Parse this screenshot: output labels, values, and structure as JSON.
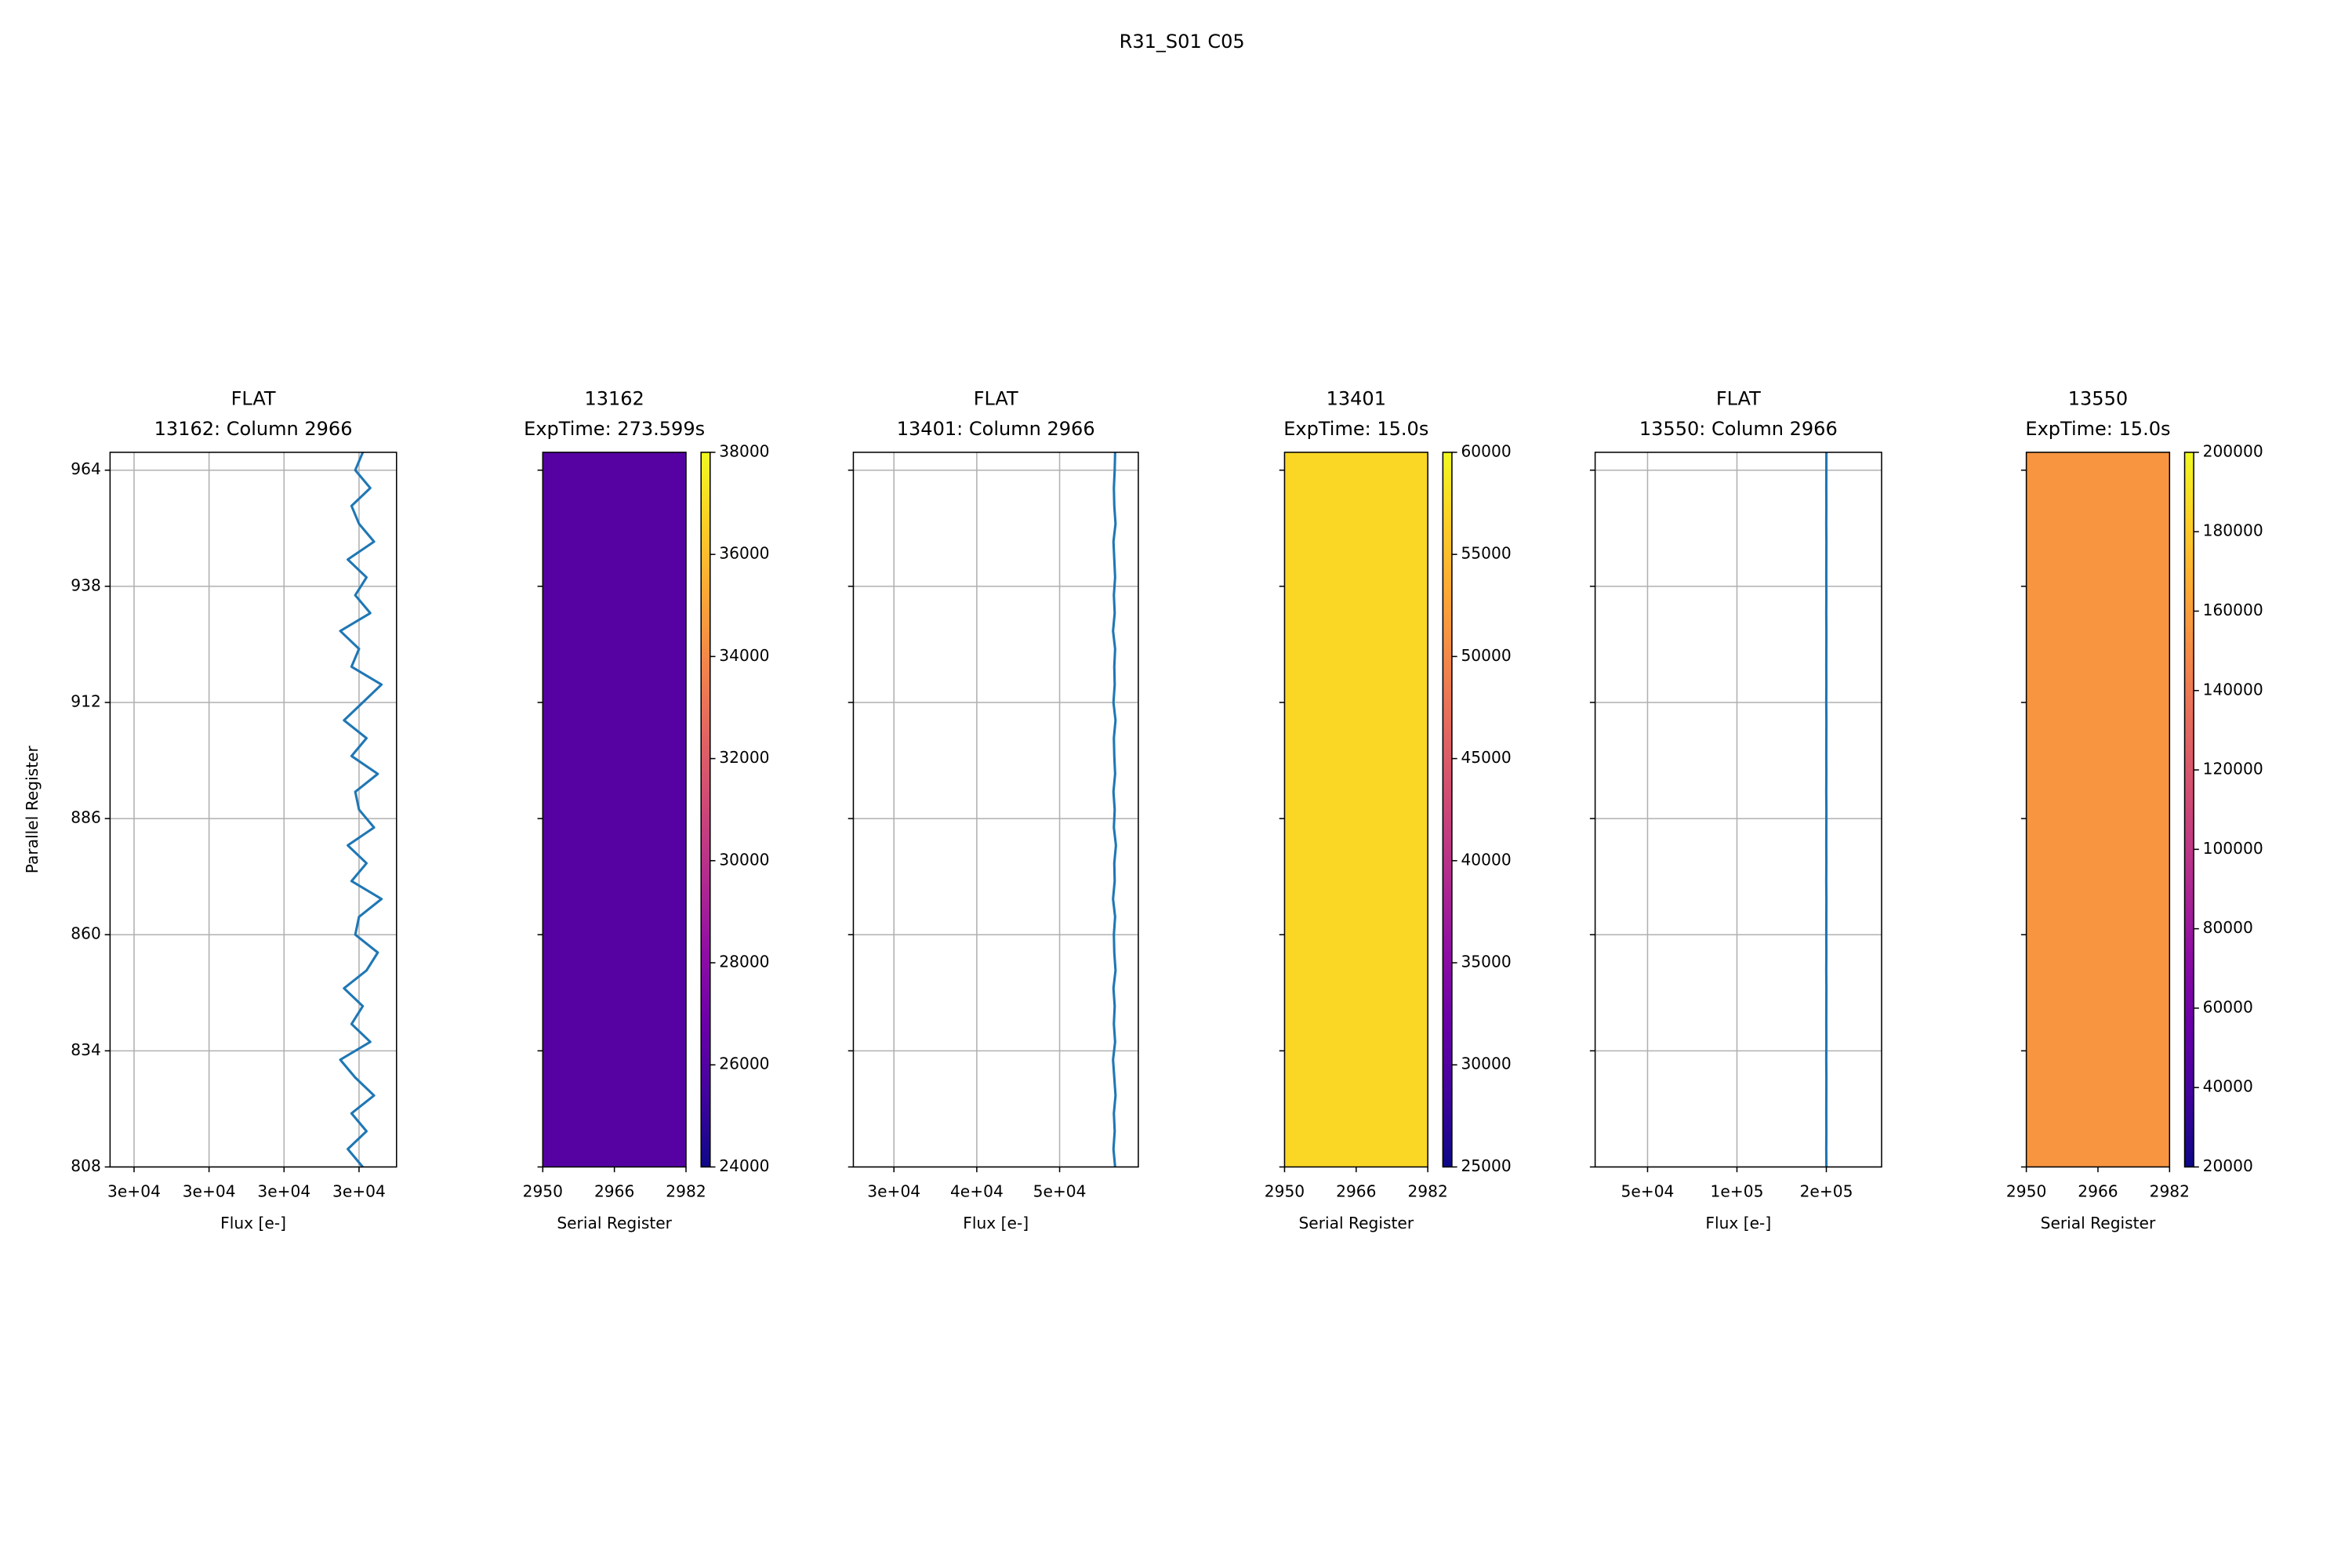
{
  "title": "R31_S01 C05",
  "chart_data": [
    {
      "type": "line",
      "title": "FLAT",
      "subtitle": "13162: Column 2966",
      "xlabel": "Flux [e-]",
      "ylabel": "Parallel Register",
      "color": "#1f77b4",
      "grid": true,
      "log": false,
      "ytick_labels": true,
      "xlim": [
        29668,
        30050
      ],
      "xticks": [
        {
          "value": 29700,
          "label": "3e+04"
        },
        {
          "value": 29800,
          "label": "3e+04"
        },
        {
          "value": 29900,
          "label": "3e+04"
        },
        {
          "value": 30000,
          "label": "3e+04"
        }
      ],
      "ylim": [
        808,
        968
      ],
      "yticks": [
        808,
        834,
        860,
        886,
        912,
        938,
        964
      ],
      "y": [
        808,
        812,
        816,
        820,
        824,
        828,
        832,
        836,
        840,
        844,
        848,
        852,
        856,
        860,
        864,
        868,
        872,
        876,
        880,
        884,
        888,
        892,
        896,
        900,
        904,
        908,
        912,
        916,
        920,
        924,
        928,
        932,
        936,
        940,
        944,
        948,
        952,
        956,
        960,
        964,
        968
      ],
      "values": [
        30005,
        29985,
        30010,
        29990,
        30020,
        29995,
        29975,
        30015,
        29990,
        30005,
        29980,
        30010,
        30025,
        29995,
        30000,
        30030,
        29990,
        30010,
        29985,
        30020,
        30000,
        29995,
        30025,
        29990,
        30010,
        29980,
        30005,
        30030,
        29990,
        30000,
        29975,
        30015,
        29995,
        30010,
        29985,
        30020,
        30000,
        29990,
        30015,
        29995,
        30005
      ]
    },
    {
      "type": "heatmap",
      "title": "13162",
      "subtitle": "ExpTime: 273.599s",
      "xlabel": "Serial Register",
      "cmap": "plasma",
      "value": 26100,
      "ytick_labels": false,
      "xlim": [
        2950,
        2982
      ],
      "xticks": [
        2950,
        2966,
        2982
      ],
      "ylim": [
        808,
        968
      ],
      "yticks": [
        808,
        834,
        860,
        886,
        912,
        938,
        964
      ],
      "clim": [
        24000,
        38000
      ],
      "cticks": [
        24000,
        26000,
        28000,
        30000,
        32000,
        34000,
        36000,
        38000
      ]
    },
    {
      "type": "line",
      "title": "FLAT",
      "subtitle": "13401: Column 2966",
      "xlabel": "Flux [e-]",
      "color": "#1f77b4",
      "grid": true,
      "log": false,
      "ytick_labels": false,
      "xlim": [
        25100,
        59500
      ],
      "xticks": [
        {
          "value": 30000,
          "label": "3e+04"
        },
        {
          "value": 40000,
          "label": "4e+04"
        },
        {
          "value": 50000,
          "label": "5e+04"
        }
      ],
      "ylim": [
        808,
        968
      ],
      "yticks": [
        808,
        834,
        860,
        886,
        912,
        938,
        964
      ],
      "y": [
        808,
        812,
        816,
        820,
        824,
        828,
        832,
        836,
        840,
        844,
        848,
        852,
        856,
        860,
        864,
        868,
        872,
        876,
        880,
        884,
        888,
        892,
        896,
        900,
        904,
        908,
        912,
        916,
        920,
        924,
        928,
        932,
        936,
        940,
        944,
        948,
        952,
        956,
        960,
        964,
        968
      ],
      "values": [
        56700,
        56500,
        56650,
        56550,
        56750,
        56600,
        56450,
        56700,
        56550,
        56650,
        56500,
        56750,
        56600,
        56550,
        56700,
        56450,
        56650,
        56600,
        56800,
        56550,
        56650,
        56500,
        56700,
        56600,
        56550,
        56750,
        56500,
        56650,
        56600,
        56700,
        56450,
        56650,
        56550,
        56700,
        56600,
        56500,
        56750,
        56600,
        56550,
        56650,
        56700
      ]
    },
    {
      "type": "heatmap",
      "title": "13401",
      "subtitle": "ExpTime: 15.0s",
      "xlabel": "Serial Register",
      "cmap": "plasma",
      "value": 57200,
      "ytick_labels": false,
      "xlim": [
        2950,
        2982
      ],
      "xticks": [
        2950,
        2966,
        2982
      ],
      "ylim": [
        808,
        968
      ],
      "yticks": [
        808,
        834,
        860,
        886,
        912,
        938,
        964
      ],
      "clim": [
        25000,
        60000
      ],
      "cticks": [
        25000,
        30000,
        35000,
        40000,
        45000,
        50000,
        55000,
        60000
      ]
    },
    {
      "type": "line",
      "title": "FLAT",
      "subtitle": "13550: Column 2966",
      "xlabel": "Flux [e-]",
      "color": "#1f77b4",
      "grid": true,
      "log": true,
      "ytick_labels": false,
      "xlim": [
        33300,
        307000
      ],
      "xticks": [
        {
          "value": 50000,
          "label": "5e+04"
        },
        {
          "value": 100000,
          "label": "1e+05"
        },
        {
          "value": 200000,
          "label": "2e+05"
        }
      ],
      "ylim": [
        808,
        968
      ],
      "yticks": [
        808,
        834,
        860,
        886,
        912,
        938,
        964
      ],
      "y": [
        808,
        812,
        816,
        820,
        824,
        828,
        832,
        836,
        840,
        844,
        848,
        852,
        856,
        860,
        864,
        868,
        872,
        876,
        880,
        884,
        888,
        892,
        896,
        900,
        904,
        908,
        912,
        916,
        920,
        924,
        928,
        932,
        936,
        940,
        944,
        948,
        952,
        956,
        960,
        964,
        968
      ],
      "values": [
        200100,
        199900,
        200050,
        199950,
        200000,
        200100,
        199900,
        200050,
        199950,
        200000,
        200100,
        199900,
        200050,
        199950,
        200000,
        200100,
        199900,
        200050,
        199950,
        200000,
        200100,
        199900,
        200050,
        199950,
        200000,
        200100,
        199900,
        200050,
        199950,
        200000,
        200100,
        199900,
        200050,
        199950,
        200000,
        200100,
        199900,
        200050,
        199950,
        200000,
        200100
      ]
    },
    {
      "type": "heatmap",
      "title": "13550",
      "subtitle": "ExpTime: 15.0s",
      "xlabel": "Serial Register",
      "cmap": "plasma",
      "value": 155000,
      "ytick_labels": false,
      "xlim": [
        2950,
        2982
      ],
      "xticks": [
        2950,
        2966,
        2982
      ],
      "ylim": [
        808,
        968
      ],
      "yticks": [
        808,
        834,
        860,
        886,
        912,
        938,
        964
      ],
      "clim": [
        20000,
        200000
      ],
      "cticks": [
        20000,
        40000,
        60000,
        80000,
        100000,
        120000,
        140000,
        160000,
        180000,
        200000
      ]
    }
  ]
}
